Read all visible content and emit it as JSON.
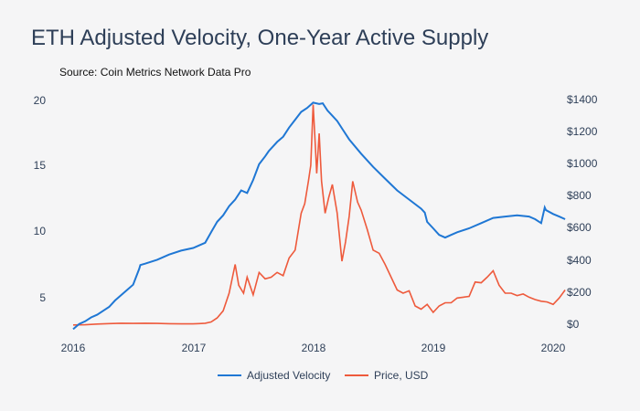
{
  "chart_data": {
    "type": "line",
    "title": "ETH Adjusted Velocity, One-Year Active Supply",
    "subtitle": "Source: Coin Metrics Network Data Pro",
    "x_ticks": [
      "2016",
      "2017",
      "2018",
      "2019",
      "2020"
    ],
    "x_range": [
      2016.0,
      2020.12
    ],
    "left_axis": {
      "range": [
        2.4,
        20.2
      ],
      "ticks": [
        "5",
        "10",
        "15",
        "20"
      ]
    },
    "right_axis": {
      "range": [
        -40,
        1400
      ],
      "ticks": [
        "$0",
        "$200",
        "$400",
        "$600",
        "$800",
        "$1000",
        "$1200",
        "$1400"
      ]
    },
    "series": [
      {
        "name": "Adjusted Velocity",
        "axis": "left",
        "color": "#1f77d4",
        "x": [
          2016.0,
          2016.05,
          2016.1,
          2016.15,
          2016.2,
          2016.25,
          2016.3,
          2016.35,
          2016.4,
          2016.45,
          2016.5,
          2016.55,
          2016.56,
          2016.6,
          2016.7,
          2016.8,
          2016.9,
          2017.0,
          2017.05,
          2017.1,
          2017.15,
          2017.2,
          2017.25,
          2017.3,
          2017.35,
          2017.4,
          2017.45,
          2017.5,
          2017.55,
          2017.6,
          2017.63,
          2017.67,
          2017.7,
          2017.75,
          2017.8,
          2017.85,
          2017.9,
          2017.95,
          2018.0,
          2018.05,
          2018.08,
          2018.12,
          2018.15,
          2018.2,
          2018.25,
          2018.3,
          2018.4,
          2018.5,
          2018.6,
          2018.7,
          2018.8,
          2018.9,
          2018.93,
          2018.95,
          2019.0,
          2019.05,
          2019.1,
          2019.15,
          2019.2,
          2019.3,
          2019.4,
          2019.5,
          2019.6,
          2019.7,
          2019.8,
          2019.85,
          2019.9,
          2019.93,
          2019.94,
          2020.0,
          2020.05,
          2020.1
        ],
        "values": [
          2.6,
          3.0,
          3.2,
          3.5,
          3.7,
          4.0,
          4.3,
          4.8,
          5.2,
          5.6,
          6.0,
          7.2,
          7.5,
          7.6,
          7.9,
          8.3,
          8.6,
          8.8,
          9.0,
          9.2,
          10.0,
          10.8,
          11.3,
          12.0,
          12.5,
          13.2,
          13.0,
          14.0,
          15.2,
          15.8,
          16.2,
          16.6,
          16.9,
          17.3,
          18.0,
          18.6,
          19.2,
          19.5,
          19.9,
          19.8,
          19.85,
          19.3,
          19.0,
          18.5,
          17.8,
          17.1,
          16.0,
          15.0,
          14.1,
          13.2,
          12.5,
          11.8,
          11.5,
          10.8,
          10.3,
          9.8,
          9.6,
          9.8,
          10.0,
          10.3,
          10.7,
          11.1,
          11.2,
          11.3,
          11.2,
          11.0,
          10.7,
          11.9,
          11.7,
          11.4,
          11.2,
          11.0
        ]
      },
      {
        "name": "Price, USD",
        "axis": "right",
        "color": "#ee5a3c",
        "x": [
          2016.0,
          2016.1,
          2016.2,
          2016.3,
          2016.4,
          2016.5,
          2016.6,
          2016.7,
          2016.8,
          2016.9,
          2017.0,
          2017.05,
          2017.1,
          2017.15,
          2017.2,
          2017.25,
          2017.3,
          2017.35,
          2017.38,
          2017.42,
          2017.45,
          2017.5,
          2017.55,
          2017.6,
          2017.65,
          2017.7,
          2017.75,
          2017.8,
          2017.85,
          2017.9,
          2017.93,
          2017.96,
          2017.98,
          2018.0,
          2018.02,
          2018.03,
          2018.05,
          2018.07,
          2018.1,
          2018.13,
          2018.16,
          2018.2,
          2018.24,
          2018.27,
          2018.3,
          2018.33,
          2018.37,
          2018.4,
          2018.45,
          2018.5,
          2018.55,
          2018.6,
          2018.65,
          2018.7,
          2018.75,
          2018.8,
          2018.85,
          2018.9,
          2018.95,
          2019.0,
          2019.05,
          2019.1,
          2019.15,
          2019.2,
          2019.25,
          2019.3,
          2019.35,
          2019.4,
          2019.45,
          2019.5,
          2019.55,
          2019.6,
          2019.65,
          2019.7,
          2019.75,
          2019.8,
          2019.85,
          2019.9,
          2019.95,
          2020.0,
          2020.05,
          2020.1
        ],
        "values": [
          1,
          2,
          7,
          10,
          12,
          11,
          12,
          11,
          9,
          8,
          8,
          10,
          12,
          20,
          45,
          90,
          200,
          380,
          250,
          200,
          300,
          190,
          330,
          290,
          300,
          330,
          310,
          420,
          470,
          700,
          760,
          900,
          1000,
          1380,
          1100,
          950,
          1200,
          900,
          700,
          800,
          880,
          700,
          400,
          520,
          680,
          900,
          770,
          720,
          600,
          470,
          450,
          380,
          300,
          220,
          200,
          215,
          120,
          100,
          130,
          80,
          120,
          140,
          140,
          170,
          175,
          180,
          270,
          265,
          300,
          340,
          250,
          200,
          200,
          185,
          195,
          175,
          160,
          150,
          145,
          130,
          170,
          220
        ]
      }
    ]
  },
  "legend": {
    "items": [
      {
        "label": "Adjusted Velocity",
        "color": "#1f77d4"
      },
      {
        "label": "Price, USD",
        "color": "#ee5a3c"
      }
    ]
  }
}
